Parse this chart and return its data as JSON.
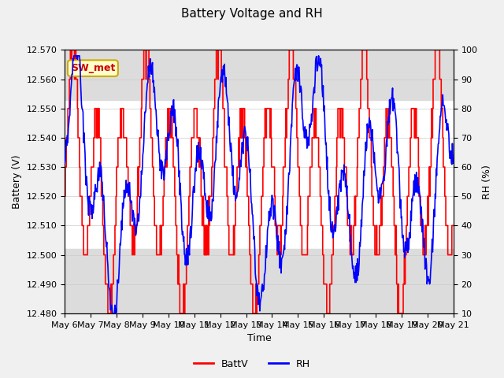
{
  "title": "Battery Voltage and RH",
  "xlabel": "Time",
  "ylabel_left": "Battery (V)",
  "ylabel_right": "RH (%)",
  "annotation": "SW_met",
  "ylim_left": [
    12.48,
    12.57
  ],
  "ylim_right": [
    10,
    100
  ],
  "yticks_left": [
    12.48,
    12.49,
    12.5,
    12.51,
    12.52,
    12.53,
    12.54,
    12.55,
    12.56,
    12.57
  ],
  "yticks_right": [
    10,
    20,
    30,
    40,
    50,
    60,
    70,
    80,
    90,
    100
  ],
  "xtick_labels": [
    "May 6",
    "May 7",
    "May 8",
    "May 9",
    "May 10",
    "May 11",
    "May 12",
    "May 13",
    "May 14",
    "May 15",
    "May 16",
    "May 17",
    "May 18",
    "May 19",
    "May 20",
    "May 21"
  ],
  "color_batt": "#ff0000",
  "color_rh": "#0000ff",
  "legend_labels": [
    "BattV",
    "RH"
  ],
  "fig_facecolor": "#f0f0f0",
  "plot_bg_color": "#ffffff",
  "band_color": "#dcdcdc",
  "band1_ylim": [
    12.553,
    12.57
  ],
  "band2_ylim": [
    12.48,
    12.502
  ],
  "title_fontsize": 11,
  "axis_fontsize": 9,
  "tick_fontsize": 8
}
